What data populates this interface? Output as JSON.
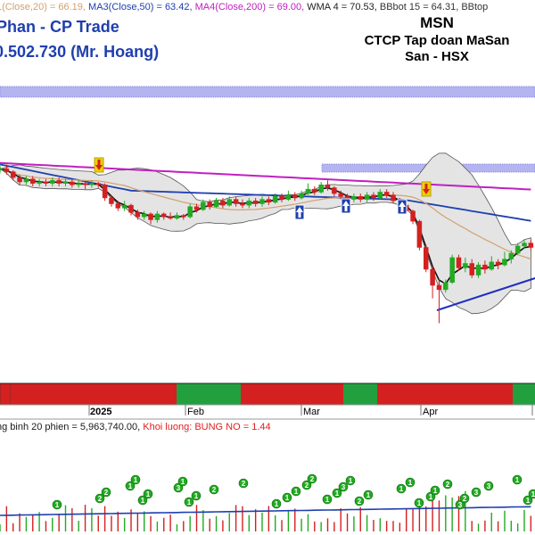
{
  "header": {
    "indicator_parts": [
      {
        "text": "1(Close,20) = 66.19, ",
        "color": "#d2a070"
      },
      {
        "text": "MA3(Close,50) = 63.42, ",
        "color": "#1f3fae"
      },
      {
        "text": "MA4(Close,200) = 69.00, ",
        "color": "#c020c0"
      },
      {
        "text": "WMA 4 = 70.53, ",
        "color": "#222222"
      },
      {
        "text": "BBbot 15 = 64.31, ",
        "color": "#333333"
      },
      {
        "text": "BBtop",
        "color": "#333333"
      }
    ],
    "author_line": "Phan - CP Trade",
    "phone_line": "0.502.730 (Mr. Hoang)",
    "ticker": "MSN",
    "company": "CTCP Tap doan MaSan",
    "exchange": "San - HSX"
  },
  "time_axis": {
    "labels": [
      {
        "text": "2025",
        "bold": true
      },
      {
        "text": "Feb",
        "bold": false
      },
      {
        "text": "Mar",
        "bold": false
      },
      {
        "text": "Apr",
        "bold": false
      }
    ]
  },
  "volume_header": {
    "avg_text": "ng binh 20 phien = 5,963,740.00, ",
    "vol_label": "Khoi luong: BUNG NO = 1.44",
    "avg_color": "#1a1a1a",
    "vol_color": "#e02020"
  },
  "colors": {
    "up": "#22aa22",
    "down": "#d42020",
    "ma200": "#c020c0",
    "ma50": "#1f3fae",
    "ma20": "#d2a070",
    "wma": "#111111",
    "signal_bar": "#b4b4f0"
  },
  "chart_data": {
    "type": "candlestick",
    "series_price": [
      {
        "o": 71.6,
        "c": 71.8,
        "h": 72.2,
        "l": 71.2
      },
      {
        "o": 71.8,
        "c": 71.4,
        "h": 72.4,
        "l": 71.0
      },
      {
        "o": 71.4,
        "c": 70.6,
        "h": 71.6,
        "l": 70.2
      },
      {
        "o": 70.6,
        "c": 70.0,
        "h": 71.0,
        "l": 69.6
      },
      {
        "o": 70.0,
        "c": 70.4,
        "h": 70.8,
        "l": 69.6
      },
      {
        "o": 70.4,
        "c": 69.8,
        "h": 70.8,
        "l": 69.4
      },
      {
        "o": 69.8,
        "c": 70.0,
        "h": 70.4,
        "l": 69.4
      },
      {
        "o": 70.0,
        "c": 69.8,
        "h": 70.4,
        "l": 69.4
      },
      {
        "o": 69.8,
        "c": 70.2,
        "h": 70.6,
        "l": 69.4
      },
      {
        "o": 70.2,
        "c": 69.8,
        "h": 70.6,
        "l": 69.4
      },
      {
        "o": 69.8,
        "c": 70.0,
        "h": 70.4,
        "l": 69.4
      },
      {
        "o": 70.0,
        "c": 69.6,
        "h": 70.4,
        "l": 69.2
      },
      {
        "o": 69.6,
        "c": 69.8,
        "h": 70.2,
        "l": 69.2
      },
      {
        "o": 69.8,
        "c": 69.6,
        "h": 70.0,
        "l": 69.0
      },
      {
        "o": 69.6,
        "c": 69.8,
        "h": 70.2,
        "l": 69.2
      },
      {
        "o": 69.8,
        "c": 69.6,
        "h": 70.0,
        "l": 69.2
      },
      {
        "o": 69.6,
        "c": 67.8,
        "h": 69.8,
        "l": 67.4
      },
      {
        "o": 67.8,
        "c": 67.0,
        "h": 68.2,
        "l": 66.6
      },
      {
        "o": 67.0,
        "c": 66.4,
        "h": 67.4,
        "l": 66.0
      },
      {
        "o": 66.4,
        "c": 66.8,
        "h": 67.4,
        "l": 66.0
      },
      {
        "o": 66.8,
        "c": 65.8,
        "h": 67.0,
        "l": 65.4
      },
      {
        "o": 65.8,
        "c": 65.2,
        "h": 66.2,
        "l": 64.8
      },
      {
        "o": 65.2,
        "c": 65.6,
        "h": 66.0,
        "l": 64.8
      },
      {
        "o": 65.6,
        "c": 64.8,
        "h": 65.8,
        "l": 64.2
      },
      {
        "o": 64.8,
        "c": 65.6,
        "h": 66.0,
        "l": 64.4
      },
      {
        "o": 65.6,
        "c": 65.2,
        "h": 65.8,
        "l": 64.8
      },
      {
        "o": 65.2,
        "c": 65.0,
        "h": 65.8,
        "l": 64.8
      },
      {
        "o": 65.0,
        "c": 65.4,
        "h": 65.8,
        "l": 64.8
      },
      {
        "o": 65.4,
        "c": 65.2,
        "h": 65.6,
        "l": 64.8
      },
      {
        "o": 65.2,
        "c": 66.6,
        "h": 67.0,
        "l": 65.0
      },
      {
        "o": 66.6,
        "c": 66.2,
        "h": 67.0,
        "l": 65.8
      },
      {
        "o": 66.2,
        "c": 67.2,
        "h": 67.6,
        "l": 66.0
      },
      {
        "o": 67.2,
        "c": 66.6,
        "h": 67.6,
        "l": 66.2
      },
      {
        "o": 66.6,
        "c": 67.4,
        "h": 67.8,
        "l": 66.4
      },
      {
        "o": 67.4,
        "c": 66.8,
        "h": 67.8,
        "l": 66.4
      },
      {
        "o": 66.8,
        "c": 67.6,
        "h": 68.0,
        "l": 66.6
      },
      {
        "o": 67.6,
        "c": 67.0,
        "h": 68.0,
        "l": 66.6
      },
      {
        "o": 67.0,
        "c": 66.8,
        "h": 67.6,
        "l": 66.4
      },
      {
        "o": 66.8,
        "c": 67.4,
        "h": 67.8,
        "l": 66.4
      },
      {
        "o": 67.4,
        "c": 67.0,
        "h": 67.8,
        "l": 66.6
      },
      {
        "o": 67.0,
        "c": 67.6,
        "h": 68.0,
        "l": 66.6
      },
      {
        "o": 67.6,
        "c": 67.2,
        "h": 68.0,
        "l": 66.8
      },
      {
        "o": 67.2,
        "c": 68.0,
        "h": 68.4,
        "l": 67.0
      },
      {
        "o": 68.0,
        "c": 67.6,
        "h": 68.4,
        "l": 67.2
      },
      {
        "o": 67.6,
        "c": 68.2,
        "h": 68.8,
        "l": 67.4
      },
      {
        "o": 68.2,
        "c": 67.8,
        "h": 68.6,
        "l": 67.4
      },
      {
        "o": 67.8,
        "c": 68.4,
        "h": 68.8,
        "l": 67.6
      },
      {
        "o": 68.4,
        "c": 69.0,
        "h": 69.8,
        "l": 68.2
      },
      {
        "o": 69.0,
        "c": 68.6,
        "h": 69.4,
        "l": 68.2
      },
      {
        "o": 68.6,
        "c": 69.6,
        "h": 70.0,
        "l": 68.4
      },
      {
        "o": 69.6,
        "c": 69.2,
        "h": 70.2,
        "l": 68.8
      },
      {
        "o": 69.2,
        "c": 68.4,
        "h": 69.4,
        "l": 68.0
      },
      {
        "o": 68.4,
        "c": 68.0,
        "h": 68.8,
        "l": 67.6
      },
      {
        "o": 68.0,
        "c": 67.6,
        "h": 68.4,
        "l": 67.2
      },
      {
        "o": 67.6,
        "c": 68.0,
        "h": 68.4,
        "l": 67.2
      },
      {
        "o": 68.0,
        "c": 67.6,
        "h": 68.4,
        "l": 67.2
      },
      {
        "o": 67.6,
        "c": 68.2,
        "h": 68.6,
        "l": 67.2
      },
      {
        "o": 68.2,
        "c": 67.8,
        "h": 68.6,
        "l": 67.4
      },
      {
        "o": 67.8,
        "c": 68.6,
        "h": 69.0,
        "l": 67.6
      },
      {
        "o": 68.6,
        "c": 68.2,
        "h": 69.0,
        "l": 67.8
      },
      {
        "o": 68.2,
        "c": 67.4,
        "h": 68.6,
        "l": 67.0
      },
      {
        "o": 67.4,
        "c": 66.8,
        "h": 67.8,
        "l": 66.4
      },
      {
        "o": 66.8,
        "c": 66.0,
        "h": 67.0,
        "l": 65.6
      },
      {
        "o": 66.0,
        "c": 64.6,
        "h": 66.2,
        "l": 64.2
      },
      {
        "o": 64.6,
        "c": 61.0,
        "h": 64.8,
        "l": 60.6
      },
      {
        "o": 61.0,
        "c": 58.0,
        "h": 61.4,
        "l": 57.6
      },
      {
        "o": 58.0,
        "c": 55.8,
        "h": 58.4,
        "l": 54.0
      },
      {
        "o": 55.8,
        "c": 55.2,
        "h": 56.6,
        "l": 50.6
      },
      {
        "o": 55.2,
        "c": 56.2,
        "h": 56.6,
        "l": 54.8
      },
      {
        "o": 56.2,
        "c": 59.6,
        "h": 60.0,
        "l": 56.0
      },
      {
        "o": 59.6,
        "c": 58.2,
        "h": 60.0,
        "l": 57.8
      },
      {
        "o": 58.2,
        "c": 58.8,
        "h": 59.6,
        "l": 57.6
      },
      {
        "o": 58.8,
        "c": 57.2,
        "h": 59.4,
        "l": 56.8
      },
      {
        "o": 57.2,
        "c": 58.6,
        "h": 59.0,
        "l": 56.8
      },
      {
        "o": 58.6,
        "c": 58.0,
        "h": 59.2,
        "l": 57.4
      },
      {
        "o": 58.0,
        "c": 59.0,
        "h": 59.8,
        "l": 57.8
      },
      {
        "o": 59.0,
        "c": 58.6,
        "h": 59.4,
        "l": 58.0
      },
      {
        "o": 58.6,
        "c": 59.4,
        "h": 60.4,
        "l": 58.4
      },
      {
        "o": 59.4,
        "c": 60.2,
        "h": 60.6,
        "l": 58.8
      },
      {
        "o": 60.2,
        "c": 61.2,
        "h": 61.6,
        "l": 60.0
      },
      {
        "o": 61.2,
        "c": 61.6,
        "h": 62.0,
        "l": 60.8
      },
      {
        "o": 61.6,
        "c": 61.0,
        "h": 62.0,
        "l": 60.6
      }
    ],
    "volume_markers": [
      1,
      2,
      2,
      1,
      1,
      1,
      1,
      3,
      1,
      1,
      1,
      2,
      2,
      1,
      1,
      1,
      2,
      2,
      1,
      1,
      3,
      1,
      2,
      1,
      1,
      1,
      1,
      1,
      1,
      2,
      3,
      2,
      3,
      3,
      1,
      1,
      1,
      2,
      1,
      1
    ],
    "time_labels": [
      "2025",
      "Feb",
      "Mar",
      "Apr"
    ]
  }
}
